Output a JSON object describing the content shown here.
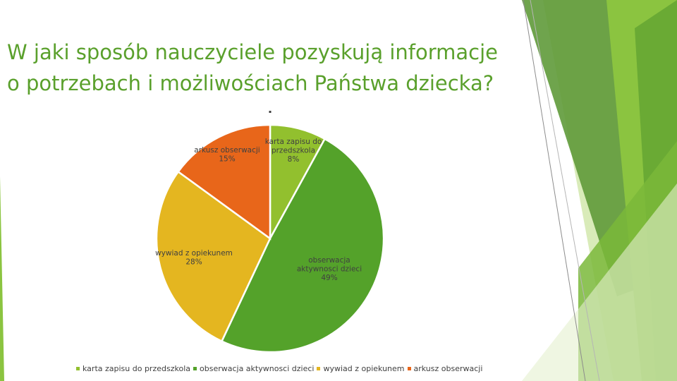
{
  "title_lines": [
    "W jaki sposób nauczyciele pozyskują informacje",
    "o potrzebach i możliwościach Państwa dziecka?"
  ],
  "chart_data": {
    "type": "pie",
    "title": "",
    "categories": [
      "karta zapisu do przedszkola",
      "obserwacja aktywnosci dzieci",
      "wywiad z opiekunem",
      "arkusz obserwacji"
    ],
    "values": [
      8,
      49,
      28,
      15
    ],
    "data_labels": [
      [
        "karta zapisu do",
        "przedszkola",
        "8%"
      ],
      [
        "obserwacja",
        "aktywnosci dzieci",
        "49%"
      ],
      [
        "wywiad z opiekunem",
        "28%"
      ],
      [
        "arkusz obserwacji",
        "15%"
      ]
    ],
    "colors": [
      "#92c02e",
      "#54a22a",
      "#e4b620",
      "#e8661a"
    ],
    "legend_position": "bottom"
  }
}
